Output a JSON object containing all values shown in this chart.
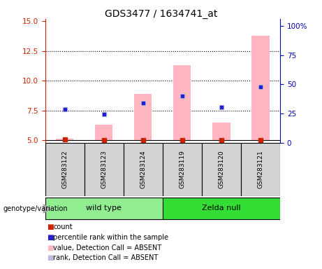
{
  "title": "GDS3477 / 1634741_at",
  "samples": [
    "GSM283122",
    "GSM283123",
    "GSM283124",
    "GSM283119",
    "GSM283120",
    "GSM283121"
  ],
  "ylim_left": [
    4.8,
    15.2
  ],
  "ylim_right": [
    0,
    106
  ],
  "yticks_left": [
    5,
    7.5,
    10,
    12.5,
    15
  ],
  "yticks_right": [
    0,
    25,
    50,
    75,
    100
  ],
  "left_color": "#CC2200",
  "right_color": "#0000BB",
  "pink_bar_bottom": 5.0,
  "pink_bars": [
    5.15,
    6.3,
    8.9,
    11.3,
    6.5,
    13.8
  ],
  "blue_sq_vals": [
    7.6,
    7.2,
    8.15,
    8.7,
    7.8,
    9.5
  ],
  "red_sq_vals": [
    5.08,
    5.0,
    5.0,
    5.0,
    5.0,
    5.0
  ],
  "title_fontsize": 10,
  "tick_fontsize": 7.5,
  "legend_colors": [
    "#CC2200",
    "#2222CC",
    "#FFB6C1",
    "#BBBBDD"
  ],
  "legend_labels": [
    "count",
    "percentile rank within the sample",
    "value, Detection Call = ABSENT",
    "rank, Detection Call = ABSENT"
  ],
  "genotype_label": "genotype/variation",
  "wild_type_color": "#90EE90",
  "zelda_null_color": "#33DD33",
  "sample_box_color": "#D3D3D3",
  "grid_dotted_at": [
    7.5,
    10.0,
    12.5
  ]
}
